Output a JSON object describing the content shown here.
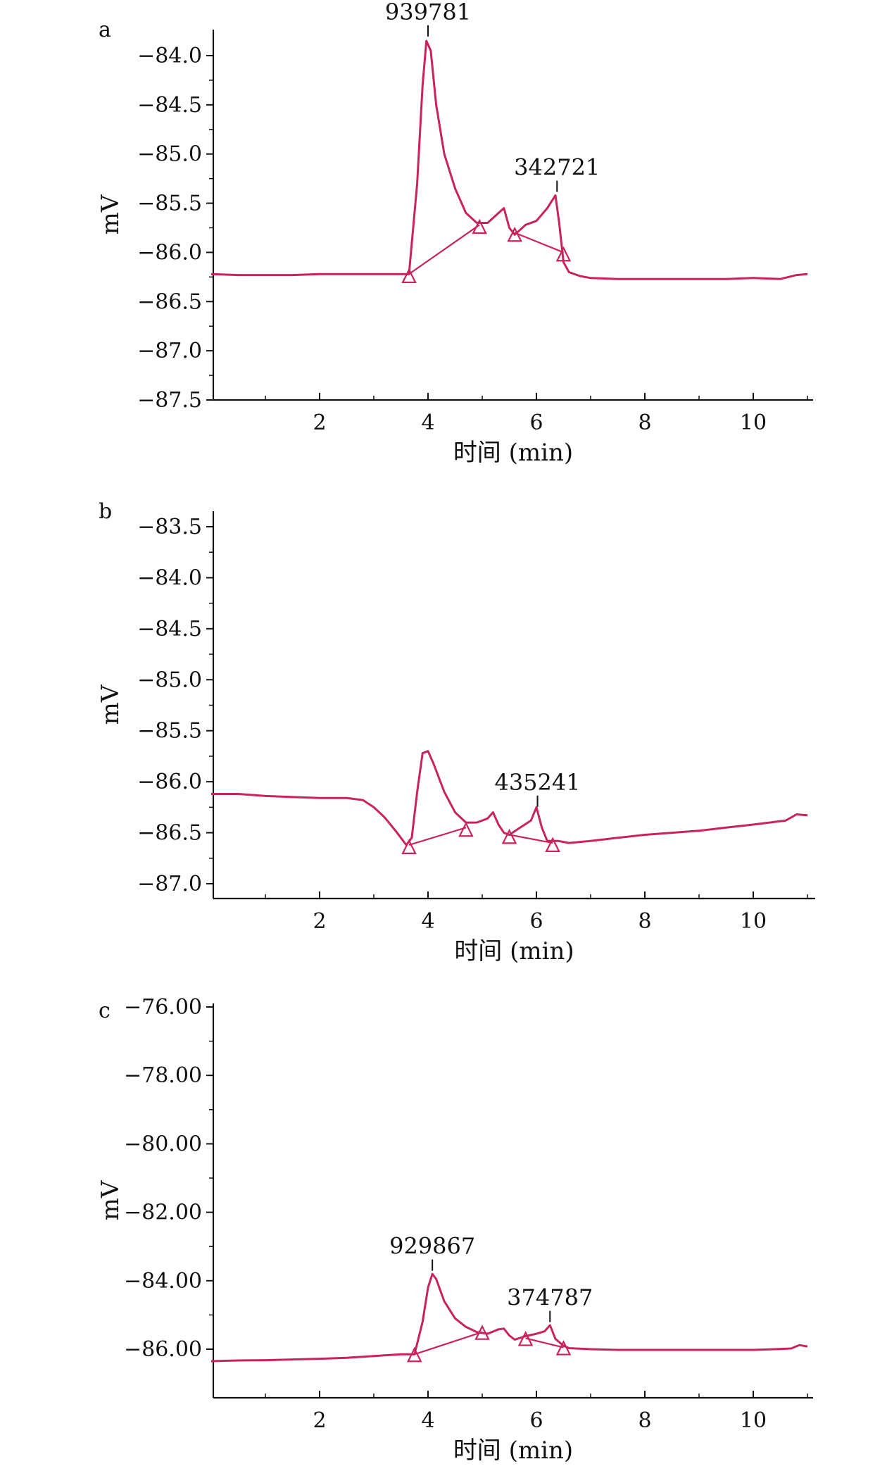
{
  "colors": {
    "trace": "#c8245a",
    "marker": "#c8245a",
    "axis": "#111111"
  },
  "chart_data": [
    {
      "type": "line",
      "panel_label": "a",
      "xlabel": "时间 (min)",
      "ylabel": "mV",
      "xlim": [
        0,
        11
      ],
      "ylim": [
        -87.5,
        -83.7
      ],
      "x_ticks": [
        2,
        4,
        6,
        8,
        10
      ],
      "x_tick_labels": [
        "2",
        "4",
        "6",
        "8",
        "10"
      ],
      "y_ticks": [
        -84.0,
        -84.5,
        -85.0,
        -85.5,
        -86.0,
        -86.5,
        -87.0,
        -87.5
      ],
      "y_tick_labels": [
        "−84.0",
        "−84.5",
        "−85.0",
        "−85.5",
        "−86.0",
        "−86.5",
        "−87.0",
        "−87.5"
      ],
      "series": [
        {
          "x": [
            0.0,
            0.5,
            1.0,
            1.5,
            2.0,
            2.5,
            3.0,
            3.5,
            3.65,
            3.8,
            3.9,
            3.97,
            4.05,
            4.15,
            4.3,
            4.5,
            4.7,
            4.9,
            5.1,
            5.3,
            5.4,
            5.5,
            5.6,
            5.8,
            6.0,
            6.2,
            6.35,
            6.42,
            6.5,
            6.6,
            6.8,
            7.0,
            7.5,
            8.0,
            8.5,
            9.0,
            9.5,
            10.0,
            10.5,
            10.8,
            11.0
          ],
          "y": [
            -86.22,
            -86.23,
            -86.23,
            -86.23,
            -86.22,
            -86.22,
            -86.22,
            -86.22,
            -86.22,
            -85.3,
            -84.3,
            -83.85,
            -83.95,
            -84.5,
            -85.0,
            -85.35,
            -85.6,
            -85.7,
            -85.7,
            -85.6,
            -85.55,
            -85.75,
            -85.82,
            -85.72,
            -85.68,
            -85.55,
            -85.42,
            -85.7,
            -86.1,
            -86.2,
            -86.24,
            -86.26,
            -86.27,
            -86.27,
            -86.27,
            -86.27,
            -86.27,
            -86.26,
            -86.27,
            -86.23,
            -86.22
          ]
        }
      ],
      "baselines": [
        {
          "x": [
            3.65,
            4.95
          ],
          "y": [
            -86.22,
            -85.72
          ]
        },
        {
          "x": [
            5.6,
            6.5
          ],
          "y": [
            -85.8,
            -86.0
          ]
        }
      ],
      "markers": [
        {
          "x": 3.65,
          "y": -86.24
        },
        {
          "x": 4.95,
          "y": -85.74
        },
        {
          "x": 5.6,
          "y": -85.82
        },
        {
          "x": 6.5,
          "y": -86.02
        }
      ],
      "annotations": [
        {
          "text": "939781",
          "x": 4.0,
          "y": -83.82
        },
        {
          "text": "342721",
          "x": 6.38,
          "y": -85.4
        }
      ]
    },
    {
      "type": "line",
      "panel_label": "b",
      "xlabel": "时间 (min)",
      "ylabel": "mV",
      "xlim": [
        0,
        11
      ],
      "ylim": [
        -87.1,
        -83.3
      ],
      "x_ticks": [
        2,
        4,
        6,
        8,
        10
      ],
      "x_tick_labels": [
        "2",
        "4",
        "6",
        "8",
        "10"
      ],
      "y_ticks": [
        -83.5,
        -84.0,
        -84.5,
        -85.0,
        -85.5,
        -86.0,
        -86.5,
        -87.0
      ],
      "y_tick_labels": [
        "−83.5",
        "−84.0",
        "−84.5",
        "−85.0",
        "−85.5",
        "−86.0",
        "−86.5",
        "−87.0"
      ],
      "series": [
        {
          "x": [
            0.0,
            0.5,
            1.0,
            1.5,
            2.0,
            2.5,
            2.8,
            3.0,
            3.2,
            3.4,
            3.6,
            3.7,
            3.8,
            3.9,
            4.0,
            4.1,
            4.3,
            4.5,
            4.7,
            4.9,
            5.1,
            5.2,
            5.3,
            5.4,
            5.5,
            5.7,
            5.9,
            6.0,
            6.1,
            6.2,
            6.4,
            6.6,
            7.0,
            7.5,
            8.0,
            8.5,
            9.0,
            9.5,
            10.0,
            10.3,
            10.6,
            10.8,
            11.0
          ],
          "y": [
            -86.12,
            -86.12,
            -86.14,
            -86.15,
            -86.16,
            -86.16,
            -86.18,
            -86.25,
            -86.35,
            -86.48,
            -86.62,
            -86.55,
            -86.1,
            -85.72,
            -85.7,
            -85.82,
            -86.1,
            -86.3,
            -86.4,
            -86.4,
            -86.36,
            -86.3,
            -86.42,
            -86.5,
            -86.52,
            -86.45,
            -86.38,
            -86.25,
            -86.45,
            -86.58,
            -86.58,
            -86.6,
            -86.58,
            -86.55,
            -86.52,
            -86.5,
            -86.48,
            -86.45,
            -86.42,
            -86.4,
            -86.38,
            -86.32,
            -86.33
          ]
        }
      ],
      "baselines": [
        {
          "x": [
            3.65,
            4.7
          ],
          "y": [
            -86.62,
            -86.45
          ]
        },
        {
          "x": [
            5.5,
            6.3
          ],
          "y": [
            -86.52,
            -86.6
          ]
        }
      ],
      "markers": [
        {
          "x": 3.65,
          "y": -86.64
        },
        {
          "x": 4.7,
          "y": -86.47
        },
        {
          "x": 5.5,
          "y": -86.54
        },
        {
          "x": 6.3,
          "y": -86.62
        }
      ],
      "annotations": [
        {
          "text": "435241",
          "x": 6.02,
          "y": -86.26
        }
      ]
    },
    {
      "type": "line",
      "panel_label": "c",
      "xlabel": "时间 (min)",
      "ylabel": "mV",
      "xlim": [
        0,
        11
      ],
      "ylim": [
        -87.5,
        -76.0
      ],
      "x_ticks": [
        2,
        4,
        6,
        8,
        10
      ],
      "x_tick_labels": [
        "2",
        "4",
        "6",
        "8",
        "10"
      ],
      "y_ticks": [
        -76.0,
        -78.0,
        -80.0,
        -82.0,
        -84.0,
        -86.0
      ],
      "y_tick_labels": [
        "−76.00",
        "−78.00",
        "−80.00",
        "−82.00",
        "−84.00",
        "−86.00"
      ],
      "series": [
        {
          "x": [
            0.0,
            0.5,
            1.0,
            1.5,
            2.0,
            2.5,
            3.0,
            3.5,
            3.75,
            3.9,
            4.0,
            4.08,
            4.15,
            4.3,
            4.5,
            4.7,
            4.9,
            5.1,
            5.3,
            5.4,
            5.5,
            5.6,
            5.8,
            6.0,
            6.15,
            6.25,
            6.35,
            6.5,
            6.6,
            7.0,
            7.5,
            8.0,
            8.5,
            9.0,
            9.5,
            10.0,
            10.4,
            10.7,
            10.85,
            11.0
          ],
          "y": [
            -86.35,
            -86.33,
            -86.32,
            -86.3,
            -86.28,
            -86.25,
            -86.2,
            -86.15,
            -86.15,
            -85.2,
            -84.2,
            -83.8,
            -83.95,
            -84.6,
            -85.1,
            -85.35,
            -85.5,
            -85.55,
            -85.42,
            -85.4,
            -85.6,
            -85.72,
            -85.62,
            -85.55,
            -85.48,
            -85.3,
            -85.7,
            -85.9,
            -85.97,
            -86.0,
            -86.02,
            -86.02,
            -86.02,
            -86.02,
            -86.02,
            -86.02,
            -86.0,
            -85.98,
            -85.88,
            -85.92
          ]
        }
      ],
      "baselines": [
        {
          "x": [
            3.75,
            5.0
          ],
          "y": [
            -86.15,
            -85.5
          ]
        },
        {
          "x": [
            5.8,
            6.5
          ],
          "y": [
            -85.68,
            -85.95
          ]
        }
      ],
      "markers": [
        {
          "x": 3.75,
          "y": -86.17
        },
        {
          "x": 5.0,
          "y": -85.52
        },
        {
          "x": 5.8,
          "y": -85.7
        },
        {
          "x": 6.5,
          "y": -85.97
        }
      ],
      "annotations": [
        {
          "text": "929867",
          "x": 4.08,
          "y": -83.75
        },
        {
          "text": "374787",
          "x": 6.25,
          "y": -85.25
        }
      ]
    }
  ]
}
